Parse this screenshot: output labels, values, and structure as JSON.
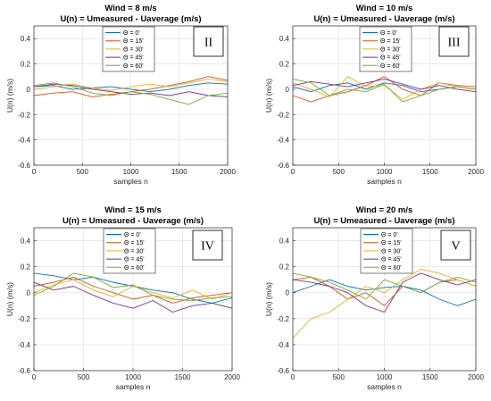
{
  "chart_data": [
    {
      "type": "line",
      "title": "Wind = 8 m/s",
      "subtitle": "U(n) = Umeasured - Uaverage (m/s)",
      "xlabel": "samples n",
      "ylabel": "U(n) (m/s)",
      "xlim": [
        0,
        2000
      ],
      "ylim": [
        -0.6,
        0.5
      ],
      "xticks": [
        0,
        500,
        1000,
        1500,
        2000
      ],
      "yticks": [
        -0.6,
        -0.4,
        -0.2,
        0,
        0.2,
        0.4
      ],
      "grid": true,
      "legend_position": "top-center",
      "panel_label": "II",
      "series": [
        {
          "name": "Θ = 0'",
          "color": "#0072BD",
          "x": [
            0,
            200,
            400,
            600,
            800,
            1000,
            1200,
            1400,
            1600,
            1800,
            2000
          ],
          "y": [
            0.02,
            0.03,
            0.0,
            0.01,
            0.02,
            0.0,
            -0.02,
            0.0,
            0.03,
            0.05,
            0.04
          ]
        },
        {
          "name": "Θ = 15'",
          "color": "#D95319",
          "x": [
            0,
            200,
            400,
            600,
            800,
            1000,
            1200,
            1400,
            1600,
            1800,
            2000
          ],
          "y": [
            -0.05,
            -0.03,
            -0.02,
            -0.06,
            -0.04,
            -0.02,
            0.0,
            0.03,
            0.06,
            0.1,
            0.07
          ]
        },
        {
          "name": "Θ = 30'",
          "color": "#EDB120",
          "x": [
            0,
            200,
            400,
            600,
            800,
            1000,
            1200,
            1400,
            1600,
            1800,
            2000
          ],
          "y": [
            0.0,
            0.02,
            0.04,
            0.01,
            -0.01,
            0.02,
            0.04,
            0.02,
            0.05,
            0.08,
            0.06
          ]
        },
        {
          "name": "Θ = 45'",
          "color": "#7E2F8E",
          "x": [
            0,
            200,
            400,
            600,
            800,
            1000,
            1200,
            1400,
            1600,
            1800,
            2000
          ],
          "y": [
            0.02,
            0.04,
            0.03,
            0.0,
            -0.02,
            -0.04,
            -0.03,
            -0.05,
            -0.02,
            -0.05,
            -0.06
          ]
        },
        {
          "name": "Θ = 60'",
          "color": "#77AC30",
          "x": [
            0,
            200,
            400,
            600,
            800,
            1000,
            1200,
            1400,
            1600,
            1800,
            2000
          ],
          "y": [
            0.03,
            0.05,
            0.02,
            -0.03,
            -0.05,
            -0.02,
            -0.04,
            -0.08,
            -0.12,
            -0.05,
            -0.03
          ]
        }
      ]
    },
    {
      "type": "line",
      "title": "Wind = 10 m/s",
      "subtitle": "U(n) = Umeasured - Uaverage (m/s)",
      "xlabel": "samples n",
      "ylabel": "U(n) (m/s)",
      "xlim": [
        0,
        2000
      ],
      "ylim": [
        -0.6,
        0.5
      ],
      "xticks": [
        0,
        500,
        1000,
        1500,
        2000
      ],
      "yticks": [
        -0.6,
        -0.4,
        -0.2,
        0,
        0.2,
        0.4
      ],
      "grid": true,
      "legend_position": "top-center",
      "panel_label": "III",
      "series": [
        {
          "name": "Θ = 0'",
          "color": "#0072BD",
          "x": [
            0,
            200,
            400,
            600,
            800,
            1000,
            1200,
            1400,
            1600,
            1800,
            2000
          ],
          "y": [
            0.02,
            -0.02,
            0.03,
            0.05,
            0.0,
            0.05,
            0.03,
            -0.02,
            0.0,
            0.02,
            0.0
          ]
        },
        {
          "name": "Θ = 15'",
          "color": "#D95319",
          "x": [
            0,
            200,
            400,
            600,
            800,
            1000,
            1200,
            1400,
            1600,
            1800,
            2000
          ],
          "y": [
            -0.05,
            -0.1,
            -0.05,
            -0.02,
            0.03,
            0.1,
            0.0,
            -0.05,
            0.05,
            0.03,
            0.02
          ]
        },
        {
          "name": "Θ = 30'",
          "color": "#EDB120",
          "x": [
            0,
            200,
            400,
            600,
            800,
            1000,
            1200,
            1400,
            1600,
            1800,
            2000
          ],
          "y": [
            0.05,
            0.0,
            -0.06,
            0.1,
            0.02,
            0.03,
            -0.08,
            0.0,
            0.05,
            0.02,
            0.0
          ]
        },
        {
          "name": "Θ = 45'",
          "color": "#7E2F8E",
          "x": [
            0,
            200,
            400,
            600,
            800,
            1000,
            1200,
            1400,
            1600,
            1800,
            2000
          ],
          "y": [
            0.03,
            0.06,
            0.04,
            0.02,
            0.05,
            0.08,
            0.04,
            0.0,
            0.03,
            0.0,
            -0.02
          ]
        },
        {
          "name": "Θ = 60'",
          "color": "#77AC30",
          "x": [
            0,
            200,
            400,
            600,
            800,
            1000,
            1200,
            1400,
            1600,
            1800,
            2000
          ],
          "y": [
            0.08,
            0.05,
            -0.05,
            0.0,
            -0.02,
            0.04,
            -0.1,
            -0.05,
            0.0,
            0.02,
            0.0
          ]
        }
      ]
    },
    {
      "type": "line",
      "title": "Wind = 15 m/s",
      "subtitle": "U(n) = Umeasured - Uaverage (m/s)",
      "xlabel": "samples n",
      "ylabel": "U(n) (m/s)",
      "xlim": [
        0,
        2000
      ],
      "ylim": [
        -0.6,
        0.5
      ],
      "xticks": [
        0,
        500,
        1000,
        1500,
        2000
      ],
      "yticks": [
        -0.6,
        -0.4,
        -0.2,
        0,
        0.2,
        0.4
      ],
      "grid": true,
      "legend_position": "top-center",
      "panel_label": "IV",
      "series": [
        {
          "name": "Θ = 0'",
          "color": "#0072BD",
          "x": [
            0,
            200,
            400,
            600,
            800,
            1000,
            1200,
            1400,
            1600,
            1800,
            2000
          ],
          "y": [
            0.15,
            0.13,
            0.1,
            0.12,
            0.08,
            0.05,
            0.02,
            0.0,
            -0.05,
            -0.08,
            -0.04
          ]
        },
        {
          "name": "Θ = 15'",
          "color": "#D95319",
          "x": [
            0,
            200,
            400,
            600,
            800,
            1000,
            1200,
            1400,
            1600,
            1800,
            2000
          ],
          "y": [
            0.05,
            0.08,
            0.12,
            0.05,
            0.0,
            -0.05,
            -0.02,
            -0.08,
            -0.04,
            -0.02,
            0.0
          ]
        },
        {
          "name": "Θ = 30'",
          "color": "#EDB120",
          "x": [
            0,
            200,
            400,
            600,
            800,
            1000,
            1200,
            1400,
            1600,
            1800,
            2000
          ],
          "y": [
            0.0,
            0.06,
            0.1,
            0.02,
            -0.03,
            0.05,
            0.0,
            -0.04,
            0.02,
            -0.05,
            0.0
          ]
        },
        {
          "name": "Θ = 45'",
          "color": "#7E2F8E",
          "x": [
            0,
            200,
            400,
            600,
            800,
            1000,
            1200,
            1400,
            1600,
            1800,
            2000
          ],
          "y": [
            0.08,
            0.02,
            0.05,
            -0.02,
            -0.08,
            -0.12,
            -0.06,
            -0.15,
            -0.1,
            -0.08,
            -0.12
          ]
        },
        {
          "name": "Θ = 60'",
          "color": "#77AC30",
          "x": [
            0,
            200,
            400,
            600,
            800,
            1000,
            1200,
            1400,
            1600,
            1800,
            2000
          ],
          "y": [
            -0.02,
            0.05,
            0.15,
            0.12,
            0.04,
            0.06,
            -0.02,
            -0.05,
            -0.06,
            -0.04,
            -0.03
          ]
        }
      ]
    },
    {
      "type": "line",
      "title": "Wind = 20 m/s",
      "subtitle": "U(n) = Umeasured - Uaverage (m/s)",
      "xlabel": "samples n",
      "ylabel": "U(n) (m/s)",
      "xlim": [
        0,
        2000
      ],
      "ylim": [
        -0.6,
        0.5
      ],
      "xticks": [
        0,
        500,
        1000,
        1500,
        2000
      ],
      "yticks": [
        -0.6,
        -0.4,
        -0.2,
        0,
        0.2,
        0.4
      ],
      "grid": true,
      "legend_position": "top-center",
      "panel_label": "V",
      "series": [
        {
          "name": "Θ = 0'",
          "color": "#0072BD",
          "x": [
            0,
            200,
            400,
            600,
            800,
            1000,
            1200,
            1400,
            1600,
            1800,
            2000
          ],
          "y": [
            0.0,
            0.05,
            0.1,
            0.05,
            0.02,
            0.04,
            0.05,
            0.02,
            -0.05,
            -0.1,
            -0.05
          ]
        },
        {
          "name": "Θ = 15'",
          "color": "#D95319",
          "x": [
            0,
            200,
            400,
            600,
            800,
            1000,
            1200,
            1400,
            1600,
            1800,
            2000
          ],
          "y": [
            0.1,
            0.12,
            0.05,
            -0.05,
            0.0,
            -0.1,
            0.05,
            0.0,
            0.08,
            0.1,
            0.05
          ]
        },
        {
          "name": "Θ = 30'",
          "color": "#EDB120",
          "x": [
            0,
            200,
            400,
            600,
            800,
            1000,
            1200,
            1400,
            1600,
            1800,
            2000
          ],
          "y": [
            -0.35,
            -0.2,
            -0.15,
            -0.05,
            0.05,
            0.0,
            0.1,
            0.18,
            0.15,
            0.1,
            0.05
          ]
        },
        {
          "name": "Θ = 45'",
          "color": "#7E2F8E",
          "x": [
            0,
            200,
            400,
            600,
            800,
            1000,
            1200,
            1400,
            1600,
            1800,
            2000
          ],
          "y": [
            0.1,
            0.08,
            0.05,
            0.0,
            -0.1,
            -0.15,
            0.08,
            0.15,
            0.1,
            0.06,
            0.1
          ]
        },
        {
          "name": "Θ = 60'",
          "color": "#77AC30",
          "x": [
            0,
            200,
            400,
            600,
            800,
            1000,
            1200,
            1400,
            1600,
            1800,
            2000
          ],
          "y": [
            0.15,
            0.12,
            0.08,
            0.02,
            -0.05,
            0.1,
            0.05,
            0.0,
            0.08,
            0.12,
            0.08
          ]
        }
      ]
    }
  ]
}
